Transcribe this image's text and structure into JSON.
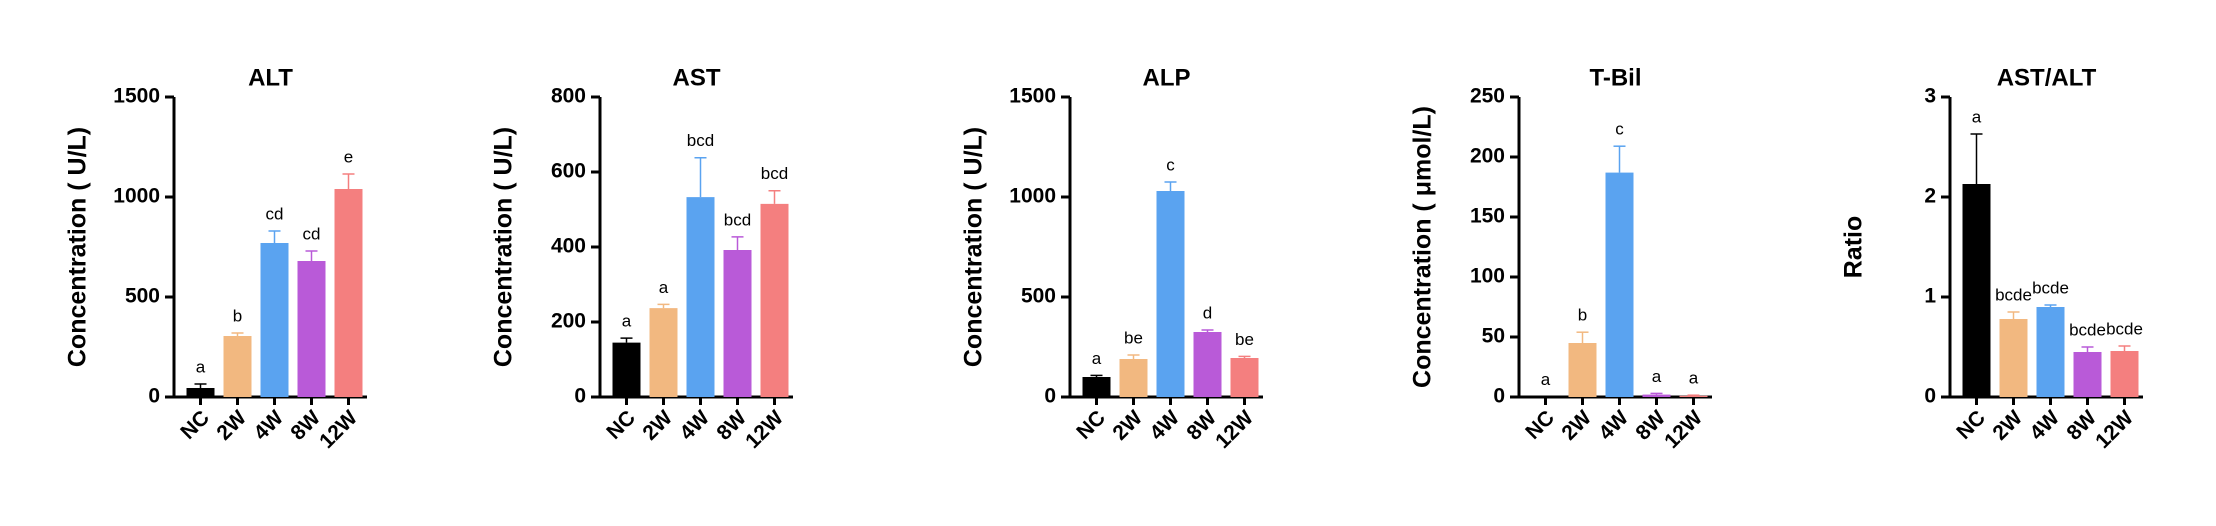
{
  "chart_data": [
    {
      "type": "bar",
      "title": "ALT",
      "ylabel": "Concentration ( U/L)",
      "categories": [
        "NC",
        "2W",
        "4W",
        "8W",
        "12W"
      ],
      "values": [
        45,
        305,
        770,
        680,
        1040
      ],
      "errors": [
        20,
        15,
        60,
        50,
        75
      ],
      "annotations": [
        "a",
        "b",
        "cd",
        "cd",
        "e"
      ],
      "colors": [
        "#000000",
        "#f2b880",
        "#5aa3f0",
        "#b95ad8",
        "#f47f7f"
      ],
      "ylim": [
        0,
        1500
      ],
      "yticks": [
        0,
        500,
        1000,
        1500
      ]
    },
    {
      "type": "bar",
      "title": "AST",
      "ylabel": "Concentration ( U/L)",
      "categories": [
        "NC",
        "2W",
        "4W",
        "8W",
        "12W"
      ],
      "values": [
        145,
        237,
        533,
        392,
        515
      ],
      "errors": [
        12,
        10,
        105,
        35,
        35
      ],
      "annotations": [
        "a",
        "a",
        "bcd",
        "bcd",
        "bcd"
      ],
      "colors": [
        "#000000",
        "#f2b880",
        "#5aa3f0",
        "#b95ad8",
        "#f47f7f"
      ],
      "ylim": [
        0,
        800
      ],
      "yticks": [
        0,
        200,
        400,
        600,
        800
      ]
    },
    {
      "type": "bar",
      "title": "ALP",
      "ylabel": "Concentration ( U/L)",
      "categories": [
        "NC",
        "2W",
        "4W",
        "8W",
        "12W"
      ],
      "values": [
        100,
        190,
        1030,
        325,
        195
      ],
      "errors": [
        8,
        20,
        45,
        10,
        8
      ],
      "annotations": [
        "a",
        "be",
        "c",
        "d",
        "be"
      ],
      "colors": [
        "#000000",
        "#f2b880",
        "#5aa3f0",
        "#b95ad8",
        "#f47f7f"
      ],
      "ylim": [
        0,
        1500
      ],
      "yticks": [
        0,
        500,
        1000,
        1500
      ]
    },
    {
      "type": "bar",
      "title": "T-Bil",
      "ylabel": "Concentration ( μmol/L)",
      "categories": [
        "NC",
        "2W",
        "4W",
        "8W",
        "12W"
      ],
      "values": [
        0.5,
        45,
        187,
        2,
        1
      ],
      "errors": [
        0,
        9,
        22,
        1,
        0.5
      ],
      "annotations": [
        "a",
        "b",
        "c",
        "a",
        "a"
      ],
      "colors": [
        "#000000",
        "#f2b880",
        "#5aa3f0",
        "#b95ad8",
        "#f47f7f"
      ],
      "ylim": [
        0,
        250
      ],
      "yticks": [
        0,
        50,
        100,
        150,
        200,
        250
      ]
    },
    {
      "type": "bar",
      "title": "AST/ALT",
      "ylabel": "Ratio",
      "categories": [
        "NC",
        "2W",
        "4W",
        "8W",
        "12W"
      ],
      "values": [
        2.13,
        0.78,
        0.9,
        0.45,
        0.46
      ],
      "errors": [
        0.5,
        0.07,
        0.02,
        0.05,
        0.05
      ],
      "annotations": [
        "a",
        "bcde",
        "bcde",
        "bcde",
        "bcde"
      ],
      "colors": [
        "#000000",
        "#f2b880",
        "#5aa3f0",
        "#b95ad8",
        "#f47f7f"
      ],
      "ylim": [
        0,
        3
      ],
      "yticks": [
        0,
        1,
        2,
        3
      ]
    }
  ]
}
